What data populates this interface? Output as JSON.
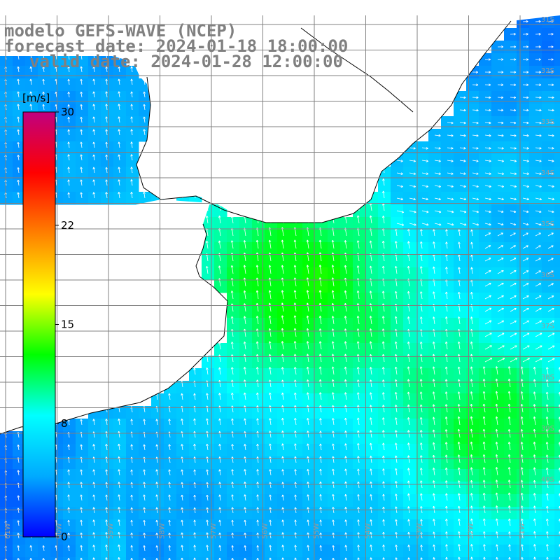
{
  "title": {
    "line1": "modelo GEFS-WAVE (NCEP)",
    "line2": "forecast date: 2024-01-18 18:00:00",
    "line3": "valid date: 2024-01-28 12:00:00"
  },
  "colorbar": {
    "unit": "[m/s]",
    "min": 0,
    "max": 30,
    "ticks": [
      {
        "value": 30,
        "label": "30"
      },
      {
        "value": 22,
        "label": "22"
      },
      {
        "value": 15,
        "label": "15"
      },
      {
        "value": 8,
        "label": "8"
      },
      {
        "value": 0,
        "label": "0"
      }
    ],
    "colors": [
      "#0000ff",
      "#00aaff",
      "#00ffff",
      "#00ff00",
      "#ffff00",
      "#ff8000",
      "#ff0000",
      "#c00080"
    ]
  },
  "grid": {
    "lat_labels": [
      "31S",
      "32S",
      "33S",
      "34S",
      "35S",
      "36S",
      "37S",
      "38S",
      "39S",
      "40S"
    ],
    "lon_labels": [
      "61W",
      "60W",
      "59W",
      "58W",
      "57W",
      "56W",
      "55W",
      "54W",
      "53W",
      "52W",
      "51W"
    ]
  },
  "colors": {
    "land": "#ffffff",
    "grid_line": "#808080",
    "coastline": "#000000",
    "arrows": "#ffffff"
  },
  "field": {
    "variable": "wind speed and direction",
    "description_scale": "m/s"
  }
}
